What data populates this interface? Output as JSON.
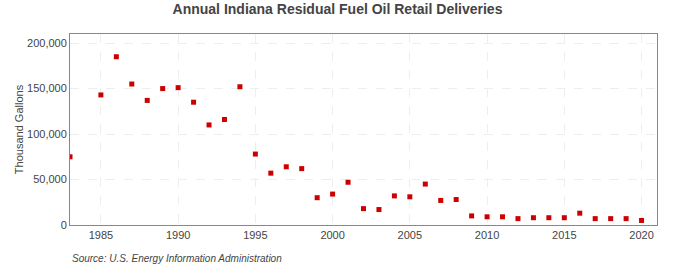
{
  "chart_data": {
    "type": "scatter",
    "title": "Annual Indiana Residual Fuel Oil Retail Deliveries",
    "ylabel": "Thousand Gallons",
    "annotations": [
      "Source: U.S. Energy Information Administration"
    ],
    "x": [
      1983,
      1985,
      1986,
      1987,
      1988,
      1989,
      1990,
      1991,
      1992,
      1993,
      1994,
      1995,
      1996,
      1997,
      1998,
      1999,
      2000,
      2001,
      2002,
      2003,
      2004,
      2005,
      2006,
      2007,
      2008,
      2009,
      2010,
      2011,
      2012,
      2013,
      2014,
      2015,
      2016,
      2017,
      2018,
      2019,
      2020
    ],
    "values": [
      75000,
      143000,
      185000,
      155000,
      137000,
      150000,
      151000,
      135000,
      110000,
      116000,
      152000,
      78000,
      57000,
      64000,
      62000,
      30000,
      34000,
      47000,
      18000,
      17000,
      32000,
      31000,
      45000,
      27000,
      28000,
      10000,
      9000,
      9000,
      7000,
      8000,
      8000,
      8000,
      13000,
      7000,
      7000,
      7000,
      5000
    ],
    "color": "#cc0000",
    "marker": "square",
    "xlim": [
      1983,
      2021
    ],
    "xticks": [
      1985,
      1990,
      1995,
      2000,
      2005,
      2010,
      2015,
      2020
    ],
    "ylim": [
      0,
      210000
    ],
    "yticks": [
      0,
      {
        "value": 50000,
        "label": "50,000"
      },
      {
        "value": 100000,
        "label": "100,000"
      },
      {
        "value": 150000,
        "label": "150,000"
      },
      {
        "value": 200000,
        "label": "200,000"
      }
    ],
    "grid": true
  }
}
